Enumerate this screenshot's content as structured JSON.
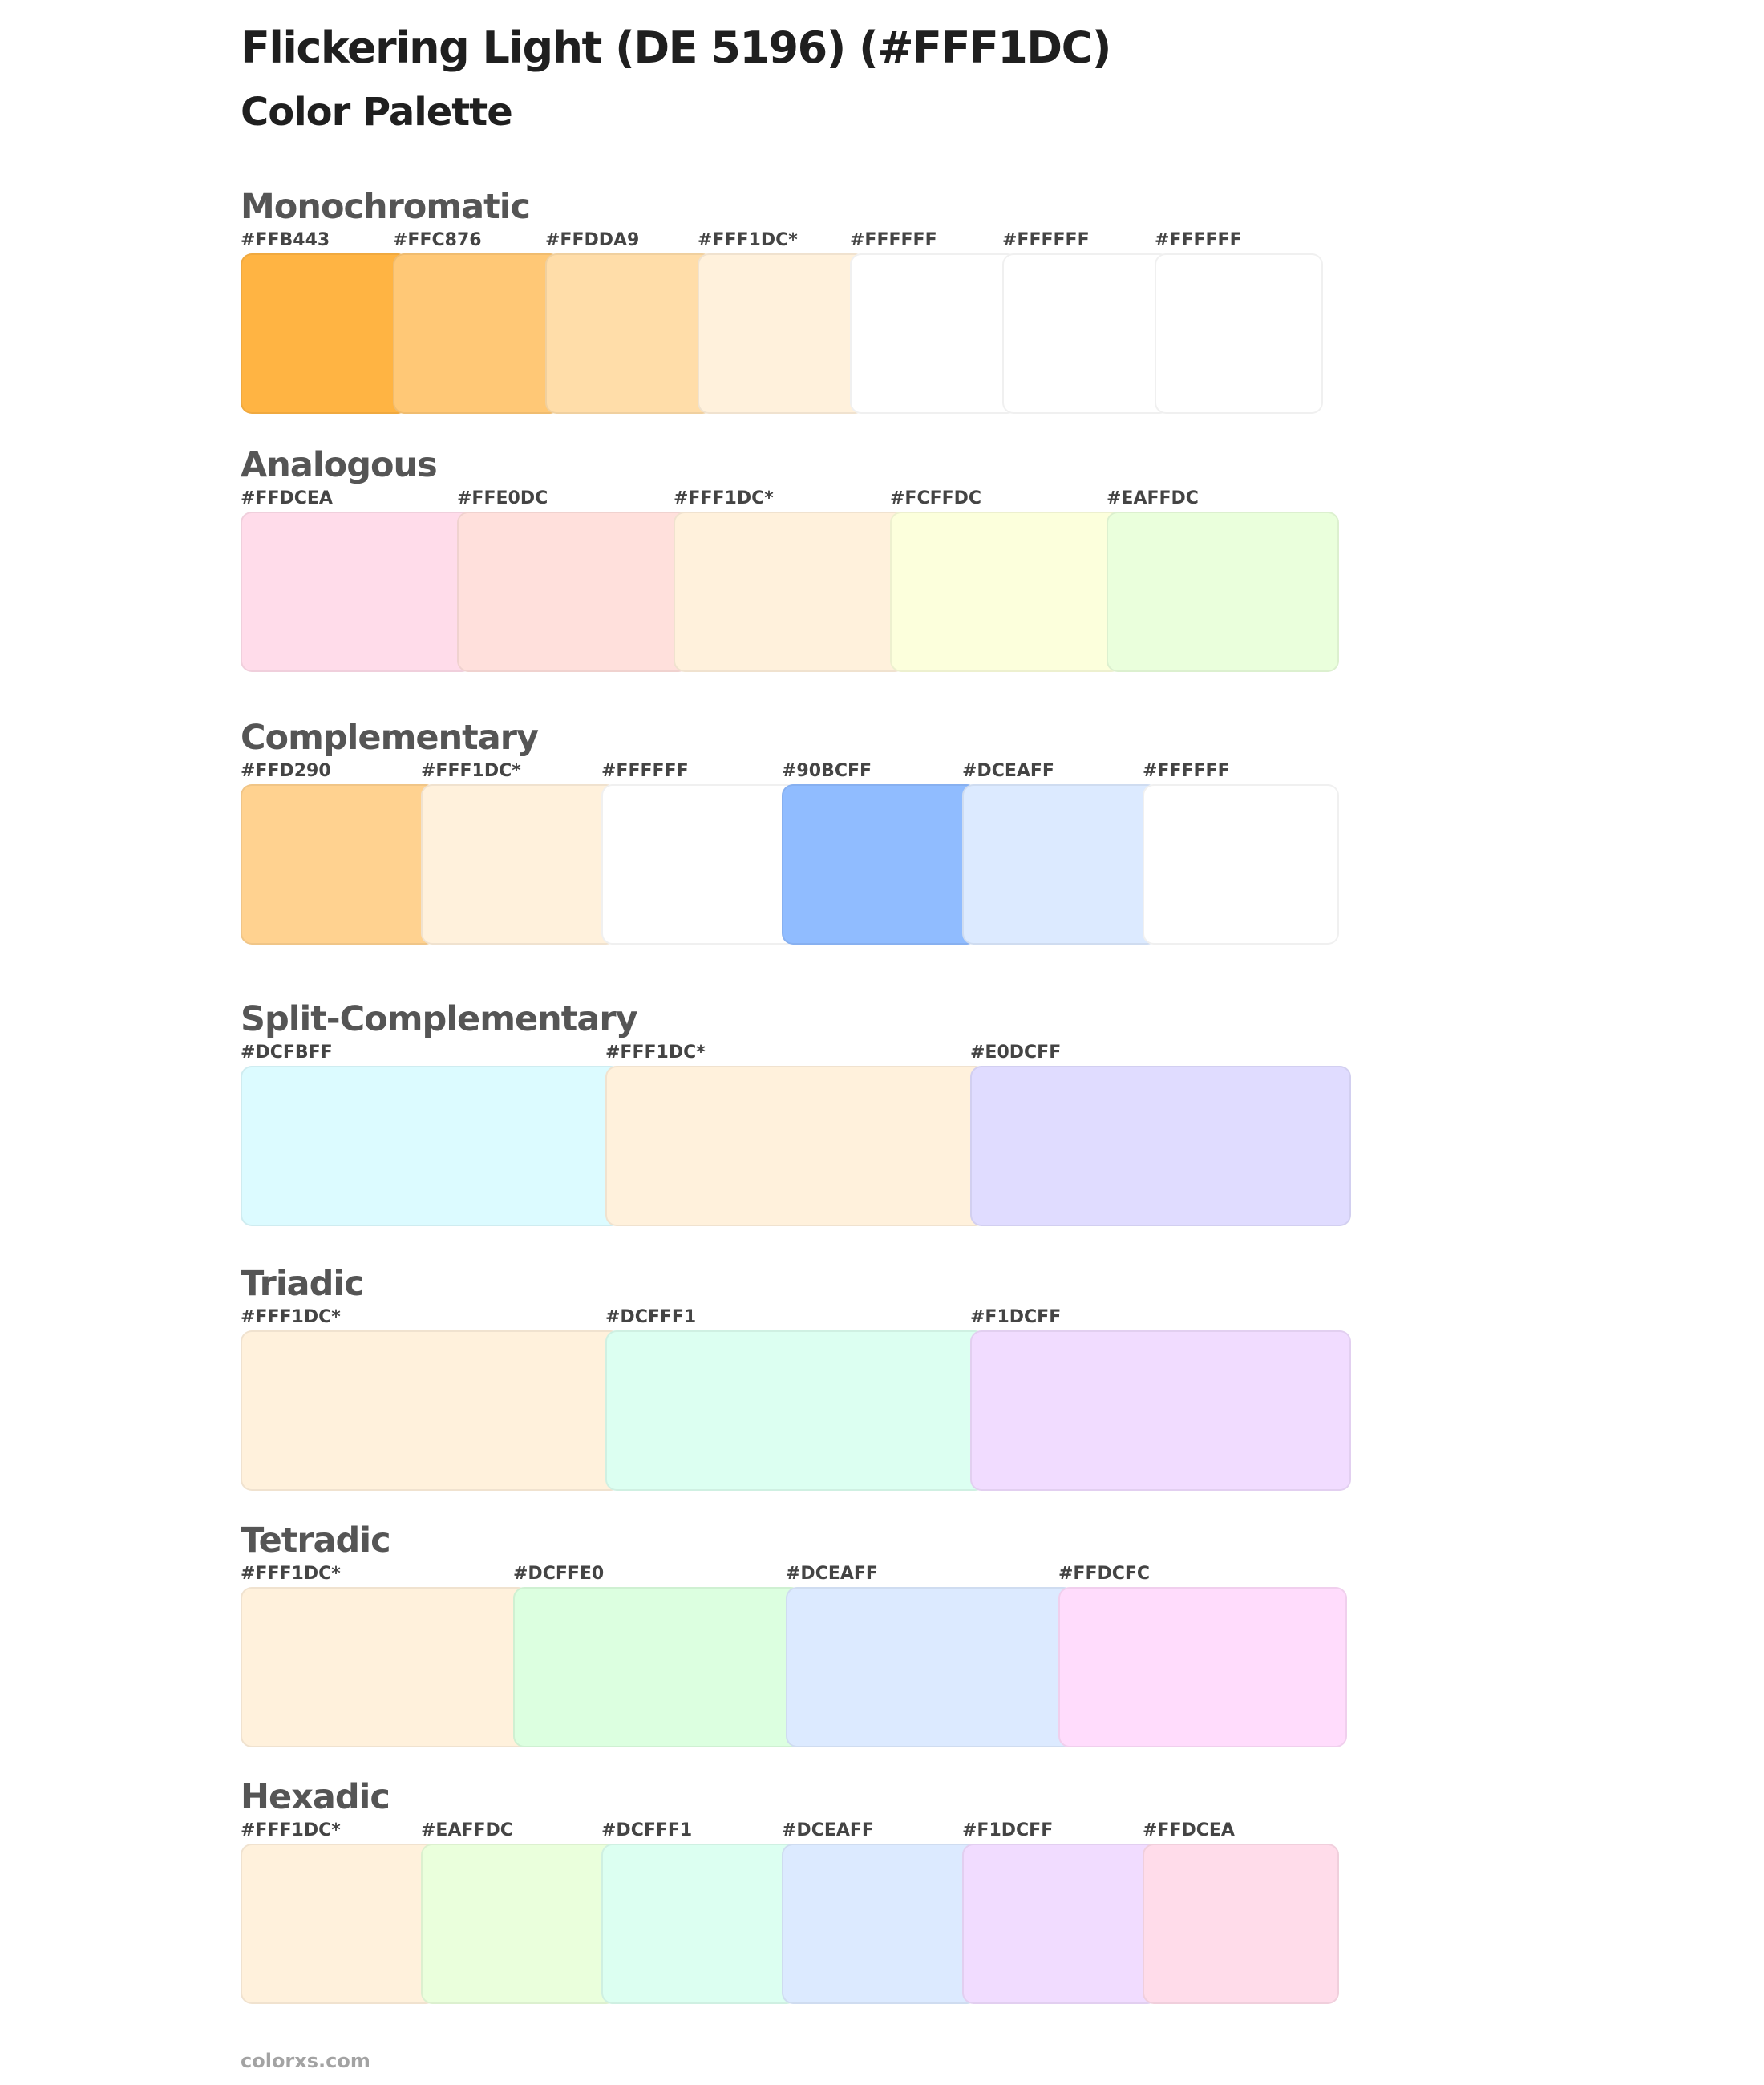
{
  "title": "Flickering Light (DE 5196) (#FFF1DC)",
  "subtitle": "Color Palette",
  "sections": [
    {
      "name": "Monochromatic",
      "colors": [
        {
          "label": "#FFB443",
          "hex": "#FFB443"
        },
        {
          "label": "#FFC876",
          "hex": "#FFC876"
        },
        {
          "label": "#FFDDA9",
          "hex": "#FFDDA9"
        },
        {
          "label": "#FFF1DC*",
          "hex": "#FFF1DC"
        },
        {
          "label": "#FFFFFF",
          "hex": "#FFFFFF"
        },
        {
          "label": "#FFFFFF",
          "hex": "#FFFFFF"
        },
        {
          "label": "#FFFFFF",
          "hex": "#FFFFFF"
        }
      ]
    },
    {
      "name": "Analogous",
      "colors": [
        {
          "label": "#FFDCEA",
          "hex": "#FFDCEA"
        },
        {
          "label": "#FFE0DC",
          "hex": "#FFE0DC"
        },
        {
          "label": "#FFF1DC*",
          "hex": "#FFF1DC"
        },
        {
          "label": "#FCFFDC",
          "hex": "#FCFFDC"
        },
        {
          "label": "#EAFFDC",
          "hex": "#EAFFDC"
        }
      ]
    },
    {
      "name": "Complementary",
      "colors": [
        {
          "label": "#FFD290",
          "hex": "#FFD290"
        },
        {
          "label": "#FFF1DC*",
          "hex": "#FFF1DC"
        },
        {
          "label": "#FFFFFF",
          "hex": "#FFFFFF"
        },
        {
          "label": "#90BCFF",
          "hex": "#90BCFF"
        },
        {
          "label": "#DCEAFF",
          "hex": "#DCEAFF"
        },
        {
          "label": "#FFFFFF",
          "hex": "#FFFFFF"
        }
      ]
    },
    {
      "name": "Split-Complementary",
      "colors": [
        {
          "label": "#DCFBFF",
          "hex": "#DCFBFF"
        },
        {
          "label": "#FFF1DC*",
          "hex": "#FFF1DC"
        },
        {
          "label": "#E0DCFF",
          "hex": "#E0DCFF"
        }
      ]
    },
    {
      "name": "Triadic",
      "colors": [
        {
          "label": "#FFF1DC*",
          "hex": "#FFF1DC"
        },
        {
          "label": "#DCFFF1",
          "hex": "#DCFFF1"
        },
        {
          "label": "#F1DCFF",
          "hex": "#F1DCFF"
        }
      ]
    },
    {
      "name": "Tetradic",
      "colors": [
        {
          "label": "#FFF1DC*",
          "hex": "#FFF1DC"
        },
        {
          "label": "#DCFFE0",
          "hex": "#DCFFE0"
        },
        {
          "label": "#DCEAFF",
          "hex": "#DCEAFF"
        },
        {
          "label": "#FFDCFC",
          "hex": "#FFDCFC"
        }
      ]
    },
    {
      "name": "Hexadic",
      "colors": [
        {
          "label": "#FFF1DC*",
          "hex": "#FFF1DC"
        },
        {
          "label": "#EAFFDC",
          "hex": "#EAFFDC"
        },
        {
          "label": "#DCFFF1",
          "hex": "#DCFFF1"
        },
        {
          "label": "#DCEAFF",
          "hex": "#DCEAFF"
        },
        {
          "label": "#F1DCFF",
          "hex": "#F1DCFF"
        },
        {
          "label": "#FFDCEA",
          "hex": "#FFDCEA"
        }
      ]
    }
  ],
  "footer": "colorxs.com"
}
